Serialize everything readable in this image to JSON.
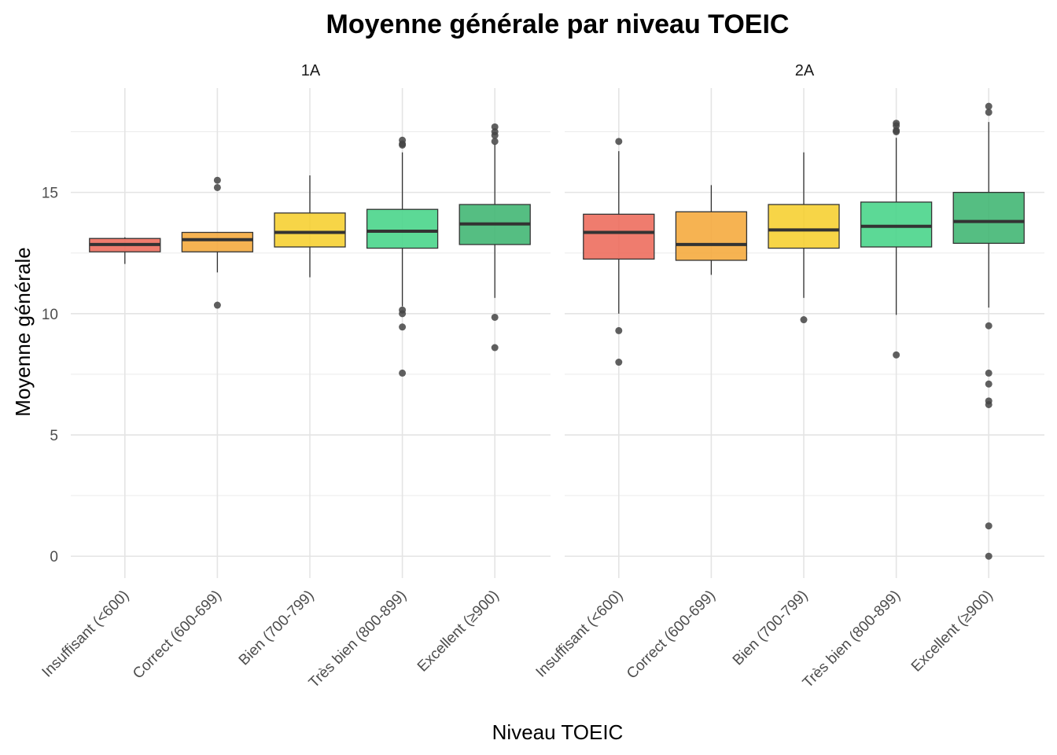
{
  "chart_data": {
    "type": "boxplot",
    "title": "Moyenne générale par niveau TOEIC",
    "xlabel": "Niveau TOEIC",
    "ylabel": "Moyenne générale",
    "y_ticks": [
      "0",
      "5",
      "10",
      "15"
    ],
    "y_tick_values": [
      0,
      5,
      10,
      15
    ],
    "ylim": [
      -0.9,
      19.3
    ],
    "grid": true,
    "legend": "none",
    "categories": [
      "Insuffisant (<600)",
      "Correct (600-699)",
      "Bien (700-799)",
      "Très bien (800-899)",
      "Excellent (≥900)"
    ],
    "colors": [
      "#ED6A5A",
      "#F5A83A",
      "#F6CF2E",
      "#45D488",
      "#3DB571"
    ],
    "panels": [
      {
        "name": "1A",
        "boxes": [
          {
            "category": "Insuffisant (<600)",
            "lower_whisker": 12.05,
            "q1": 12.55,
            "median": 12.85,
            "q3": 13.1,
            "upper_whisker": 13.15,
            "outliers": []
          },
          {
            "category": "Correct (600-699)",
            "lower_whisker": 11.7,
            "q1": 12.55,
            "median": 13.05,
            "q3": 13.35,
            "upper_whisker": 13.35,
            "outliers": [
              15.5,
              15.2,
              10.35
            ]
          },
          {
            "category": "Bien (700-799)",
            "lower_whisker": 11.5,
            "q1": 12.75,
            "median": 13.35,
            "q3": 14.15,
            "upper_whisker": 15.7,
            "outliers": []
          },
          {
            "category": "Très bien (800-899)",
            "lower_whisker": 10.3,
            "q1": 12.7,
            "median": 13.4,
            "q3": 14.3,
            "upper_whisker": 16.65,
            "outliers": [
              17.15,
              17.0,
              16.95,
              10.15,
              10.0,
              9.45,
              7.55
            ]
          },
          {
            "category": "Excellent (≥900)",
            "lower_whisker": 10.65,
            "q1": 12.85,
            "median": 13.7,
            "q3": 14.5,
            "upper_whisker": 17.0,
            "outliers": [
              17.7,
              17.5,
              17.35,
              17.1,
              9.85,
              8.6
            ]
          }
        ]
      },
      {
        "name": "2A",
        "boxes": [
          {
            "category": "Insuffisant (<600)",
            "lower_whisker": 10.0,
            "q1": 12.25,
            "median": 13.35,
            "q3": 14.1,
            "upper_whisker": 16.7,
            "outliers": [
              17.1,
              9.3,
              8.0
            ]
          },
          {
            "category": "Correct (600-699)",
            "lower_whisker": 11.6,
            "q1": 12.2,
            "median": 12.85,
            "q3": 14.2,
            "upper_whisker": 15.3,
            "outliers": []
          },
          {
            "category": "Bien (700-799)",
            "lower_whisker": 10.65,
            "q1": 12.7,
            "median": 13.45,
            "q3": 14.5,
            "upper_whisker": 16.65,
            "outliers": [
              9.75
            ]
          },
          {
            "category": "Très bien (800-899)",
            "lower_whisker": 9.95,
            "q1": 12.75,
            "median": 13.6,
            "q3": 14.6,
            "upper_whisker": 17.25,
            "outliers": [
              17.85,
              17.75,
              17.55,
              17.5,
              8.3
            ]
          },
          {
            "category": "Excellent (≥900)",
            "lower_whisker": 10.25,
            "q1": 12.9,
            "median": 13.8,
            "q3": 15.0,
            "upper_whisker": 17.9,
            "outliers": [
              18.55,
              18.3,
              9.5,
              7.55,
              7.1,
              6.4,
              6.25,
              1.25,
              0.0
            ]
          }
        ]
      }
    ]
  }
}
